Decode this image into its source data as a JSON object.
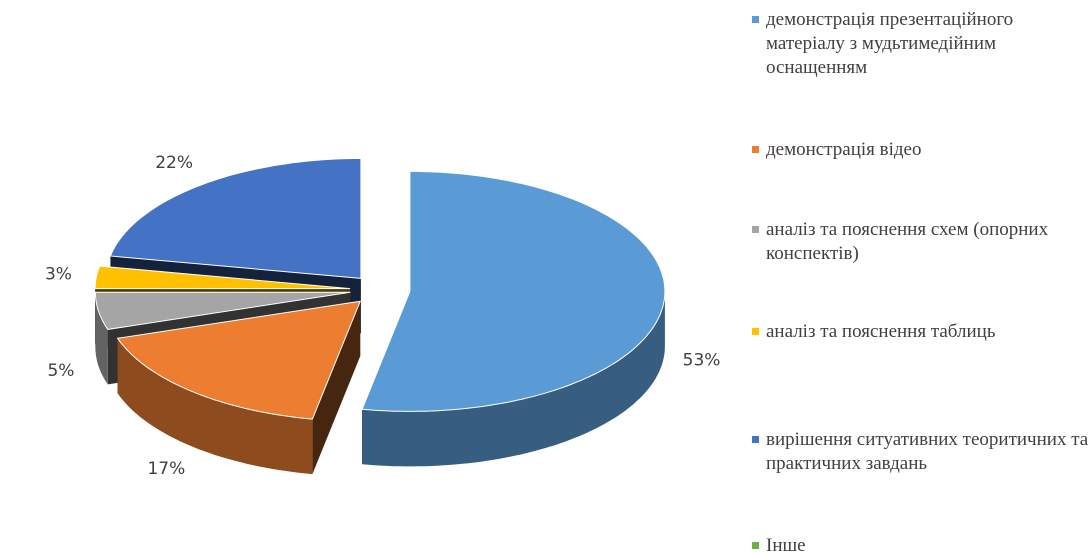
{
  "chart_data": {
    "type": "pie",
    "categories": [
      "демонстрація презентаційного матеріалу з мудьтимедійним оснащенням",
      "демонстрація відео",
      "аналіз та пояснення схем (опорних конспектів)",
      "аналіз та пояснення таблиць",
      "вирішення ситуативних теоритичних та практичних завдань",
      "Інше"
    ],
    "values": [
      53,
      17,
      5,
      3,
      22,
      0
    ],
    "value_labels": [
      "53%",
      "17%",
      "5%",
      "3%",
      "22%",
      null
    ],
    "colors": [
      "#5b9bd5",
      "#ed7d31",
      "#a5a5a5",
      "#ffc000",
      "#4472c4",
      "#70ad47"
    ],
    "legend": "right"
  }
}
